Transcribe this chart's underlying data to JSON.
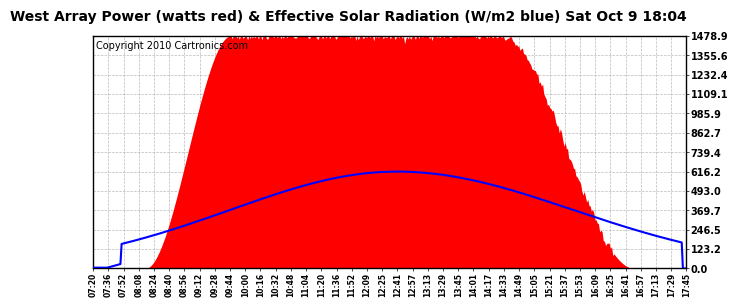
{
  "title": "West Array Power (watts red) & Effective Solar Radiation (W/m2 blue) Sat Oct 9 18:04",
  "copyright": "Copyright 2010 Cartronics.com",
  "background_color": "#ffffff",
  "plot_bg_color": "#ffffff",
  "grid_color": "#aaaaaa",
  "yticks": [
    0.0,
    123.2,
    246.5,
    369.7,
    493.0,
    616.2,
    739.4,
    862.7,
    985.9,
    1109.1,
    1232.4,
    1355.6,
    1478.9
  ],
  "ymax": 1478.9,
  "ymin": 0.0,
  "x_labels": [
    "07:20",
    "07:36",
    "07:52",
    "08:08",
    "08:24",
    "08:40",
    "08:56",
    "09:12",
    "09:28",
    "09:44",
    "10:00",
    "10:16",
    "10:32",
    "10:48",
    "11:04",
    "11:20",
    "11:36",
    "11:52",
    "12:09",
    "12:25",
    "12:41",
    "12:57",
    "13:13",
    "13:29",
    "13:45",
    "14:01",
    "14:17",
    "14:33",
    "14:49",
    "15:05",
    "15:21",
    "15:37",
    "15:53",
    "16:09",
    "16:25",
    "16:41",
    "16:57",
    "17:13",
    "17:29",
    "17:45"
  ],
  "red_fill_color": "#ff0000",
  "blue_line_color": "#0000ff",
  "title_fontsize": 10,
  "copyright_fontsize": 7
}
